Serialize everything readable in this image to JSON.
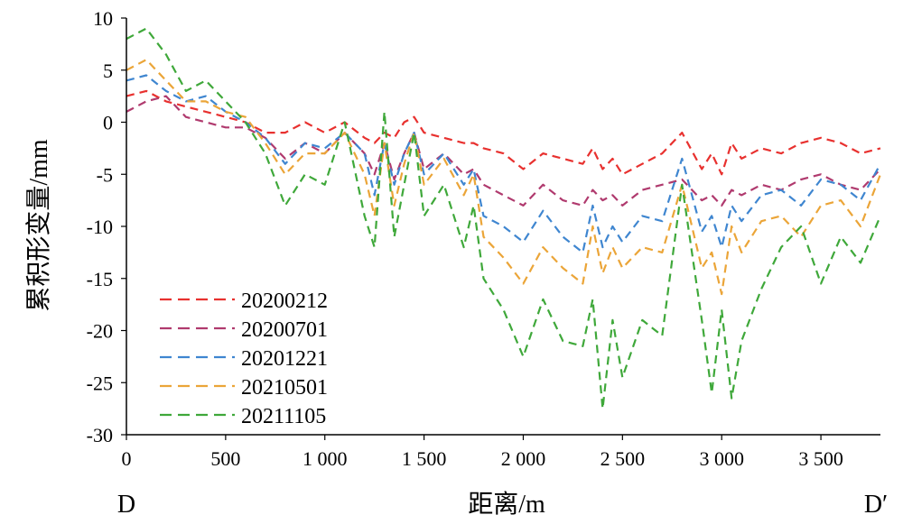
{
  "chart_data": {
    "type": "line",
    "title": "",
    "xlabel": "距离/m",
    "ylabel": "累积形变量/mm",
    "xlim": [
      0,
      3800
    ],
    "ylim": [
      -30,
      10
    ],
    "x_ticks": [
      0,
      500,
      1000,
      1500,
      2000,
      2500,
      3000,
      3500
    ],
    "x_tick_labels": [
      "0",
      "500",
      "1 000",
      "1 500",
      "2 000",
      "2 500",
      "3 000",
      "3 500"
    ],
    "y_ticks": [
      10,
      5,
      0,
      -5,
      -10,
      -15,
      -20,
      -25,
      -30
    ],
    "y_tick_labels": [
      "10",
      "5",
      "0",
      "-5",
      "-10",
      "-15",
      "-20",
      "-25",
      "-30"
    ],
    "endpoint_labels": {
      "start": "D",
      "end": "D′"
    },
    "grid": false,
    "legend_position": "bottom-left",
    "line_style": "dashed",
    "x": [
      0,
      100,
      200,
      300,
      400,
      500,
      600,
      700,
      800,
      900,
      1000,
      1100,
      1200,
      1250,
      1300,
      1350,
      1400,
      1450,
      1500,
      1600,
      1700,
      1750,
      1800,
      1900,
      2000,
      2100,
      2200,
      2300,
      2350,
      2400,
      2450,
      2500,
      2600,
      2700,
      2800,
      2900,
      2950,
      3000,
      3050,
      3100,
      3200,
      3300,
      3400,
      3500,
      3600,
      3700,
      3800
    ],
    "series": [
      {
        "name": "20200212",
        "color": "#e8312f",
        "values": [
          2.5,
          3,
          2,
          1.5,
          1,
          0.5,
          0,
          -1,
          -1,
          0,
          -1,
          0,
          -1.5,
          -2,
          -1,
          -1.5,
          0,
          0.5,
          -1,
          -1.5,
          -2,
          -2,
          -2.5,
          -3,
          -4.5,
          -3,
          -3.5,
          -4,
          -2.5,
          -4.5,
          -3.5,
          -5,
          -4,
          -3,
          -1,
          -4.5,
          -3,
          -5,
          -2,
          -3.5,
          -2.5,
          -3,
          -2,
          -1.5,
          -2,
          -3,
          -2.5
        ]
      },
      {
        "name": "20200701",
        "color": "#b03a6e",
        "values": [
          1,
          2,
          2.5,
          0.5,
          0,
          -0.5,
          -0.5,
          -1.5,
          -3.5,
          -2,
          -3,
          -1,
          -3,
          -5,
          -2,
          -5.5,
          -3,
          -1,
          -4.5,
          -3,
          -5,
          -4.5,
          -6,
          -7,
          -8,
          -6,
          -7.5,
          -8,
          -6.5,
          -7.5,
          -7,
          -8,
          -6.5,
          -6,
          -5.5,
          -7.5,
          -7,
          -8,
          -6.5,
          -7,
          -6,
          -6.5,
          -5.5,
          -5,
          -6,
          -6.5,
          -4.5
        ]
      },
      {
        "name": "20201221",
        "color": "#3f86d0",
        "values": [
          4,
          4.5,
          3,
          2,
          2.5,
          1,
          0,
          -1.5,
          -4,
          -2,
          -2.5,
          -1,
          -3,
          -7,
          -2,
          -6,
          -3,
          -1,
          -5,
          -3,
          -6,
          -4.5,
          -9,
          -10,
          -11.5,
          -8.5,
          -11,
          -12.5,
          -8,
          -12,
          -10,
          -11.5,
          -9,
          -9.5,
          -3.5,
          -10.5,
          -9,
          -12,
          -8,
          -9.5,
          -7,
          -6.5,
          -8,
          -5.5,
          -6,
          -7.5,
          -4
        ]
      },
      {
        "name": "20210501",
        "color": "#eba538",
        "values": [
          5,
          6,
          4,
          2,
          2,
          1,
          0.5,
          -2,
          -5,
          -3,
          -3,
          -1,
          -5,
          -9,
          -2,
          -8,
          -4,
          -1,
          -6,
          -3.5,
          -7,
          -5,
          -11,
          -13,
          -15.5,
          -12,
          -14,
          -15.5,
          -10,
          -14.5,
          -12,
          -14,
          -12,
          -12.5,
          -6,
          -14,
          -12.5,
          -16.5,
          -10,
          -12.5,
          -9.5,
          -9,
          -11,
          -8,
          -7.5,
          -10,
          -5
        ]
      },
      {
        "name": "20211105",
        "color": "#3fa83a",
        "values": [
          8,
          9,
          6.5,
          3,
          4,
          2,
          0,
          -3,
          -8,
          -5,
          -6,
          0,
          -9,
          -12,
          1,
          -11,
          -6,
          -1,
          -9,
          -6,
          -12,
          -8,
          -15,
          -18,
          -22.5,
          -17,
          -21,
          -21.5,
          -17,
          -27.5,
          -19,
          -24.5,
          -19,
          -20.5,
          -6,
          -19,
          -26,
          -18,
          -26.5,
          -21,
          -16,
          -12,
          -10,
          -15.5,
          -11,
          -13.5,
          -9
        ]
      }
    ]
  }
}
